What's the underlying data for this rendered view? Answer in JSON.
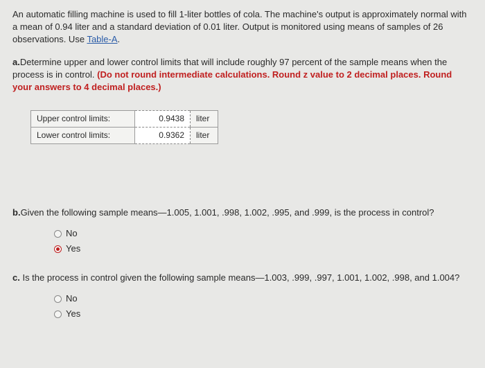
{
  "intro": {
    "text_before_link": "An automatic filling machine is used to fill 1-liter bottles of cola. The machine's output is approximately normal with a mean of 0.94 liter and a standard deviation of 0.01 liter. Output is monitored using means of samples of 26 observations. Use ",
    "link_text": "Table-A",
    "text_after_link": "."
  },
  "part_a": {
    "prefix": "a.",
    "text": "Determine upper and lower control limits that will include roughly 97 percent of the sample means when the process is in control. ",
    "instruction": "(Do not round intermediate calculations. Round z value to 2 decimal places. Round your answers to 4 decimal places.)"
  },
  "table": {
    "rows": [
      {
        "label": "Upper control limits:",
        "value": "0.9438",
        "unit": "liter"
      },
      {
        "label": "Lower control limits:",
        "value": "0.9362",
        "unit": "liter"
      }
    ]
  },
  "part_b": {
    "prefix": "b.",
    "text": "Given the following sample means—1.005, 1.001, .998, 1.002, .995, and .999, is the process in control?",
    "options": [
      {
        "label": "No",
        "selected": false
      },
      {
        "label": "Yes",
        "selected": true
      }
    ]
  },
  "part_c": {
    "prefix": "c.",
    "text": " Is the process in control given the following sample means—1.003, .999, .997, 1.001, 1.002, .998, and 1.004?",
    "options": [
      {
        "label": "No",
        "selected": false
      },
      {
        "label": "Yes",
        "selected": false
      }
    ]
  }
}
